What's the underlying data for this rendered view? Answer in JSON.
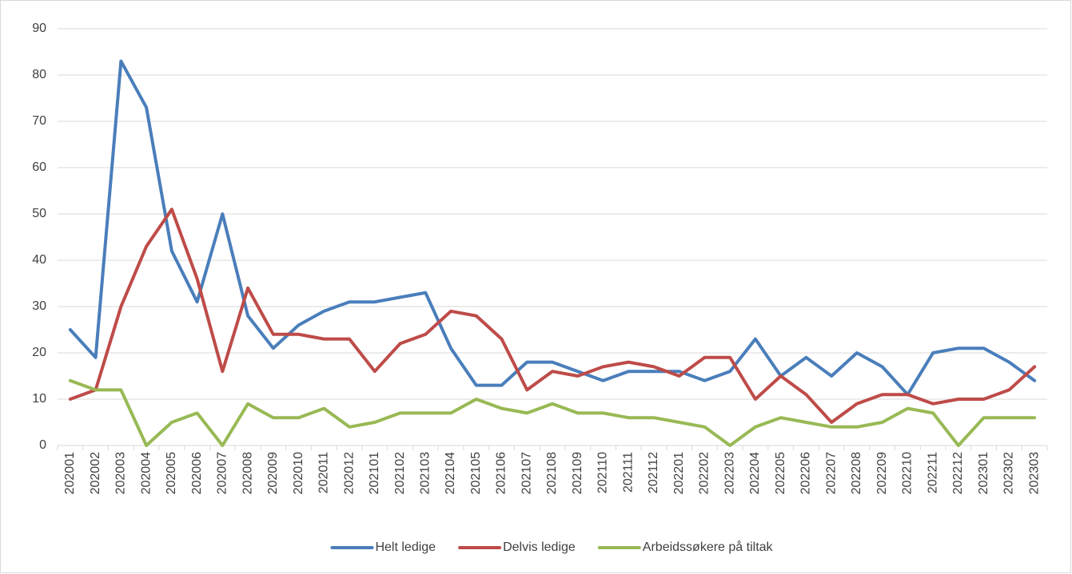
{
  "chart_data": {
    "type": "line",
    "categories": [
      "202001",
      "202002",
      "202003",
      "202004",
      "202005",
      "202006",
      "202007",
      "202008",
      "202009",
      "202010",
      "202011",
      "202012",
      "202101",
      "202102",
      "202103",
      "202104",
      "202105",
      "202106",
      "202107",
      "202108",
      "202109",
      "202110",
      "202111",
      "202112",
      "202201",
      "202202",
      "202203",
      "202204",
      "202205",
      "202206",
      "202207",
      "202208",
      "202209",
      "202210",
      "202211",
      "202212",
      "202301",
      "202302",
      "202303"
    ],
    "series": [
      {
        "name": "Helt ledige",
        "color": "#4a7ebb",
        "values": [
          25,
          19,
          83,
          73,
          42,
          31,
          50,
          28,
          21,
          26,
          29,
          31,
          31,
          32,
          33,
          21,
          13,
          13,
          18,
          18,
          16,
          14,
          16,
          16,
          16,
          14,
          16,
          23,
          15,
          19,
          15,
          20,
          17,
          11,
          20,
          21,
          21,
          18,
          14
        ]
      },
      {
        "name": "Delvis ledige",
        "color": "#be4b48",
        "values": [
          10,
          12,
          30,
          43,
          51,
          36,
          16,
          34,
          24,
          24,
          23,
          23,
          16,
          22,
          24,
          29,
          28,
          23,
          12,
          16,
          15,
          17,
          18,
          17,
          15,
          19,
          19,
          10,
          15,
          11,
          5,
          9,
          11,
          11,
          9,
          10,
          10,
          12,
          17
        ]
      },
      {
        "name": "Arbeidssøkere på tiltak",
        "color": "#98b954",
        "values": [
          14,
          12,
          12,
          0,
          5,
          7,
          0,
          9,
          6,
          6,
          8,
          4,
          5,
          7,
          7,
          7,
          10,
          8,
          7,
          9,
          7,
          7,
          6,
          6,
          5,
          4,
          0,
          4,
          6,
          5,
          4,
          4,
          5,
          8,
          7,
          0,
          6,
          6,
          6
        ]
      }
    ],
    "ylim": [
      0,
      90
    ],
    "yticks": [
      0,
      10,
      20,
      30,
      40,
      50,
      60,
      70,
      80,
      90
    ],
    "grid": true,
    "legend": "bottom"
  }
}
